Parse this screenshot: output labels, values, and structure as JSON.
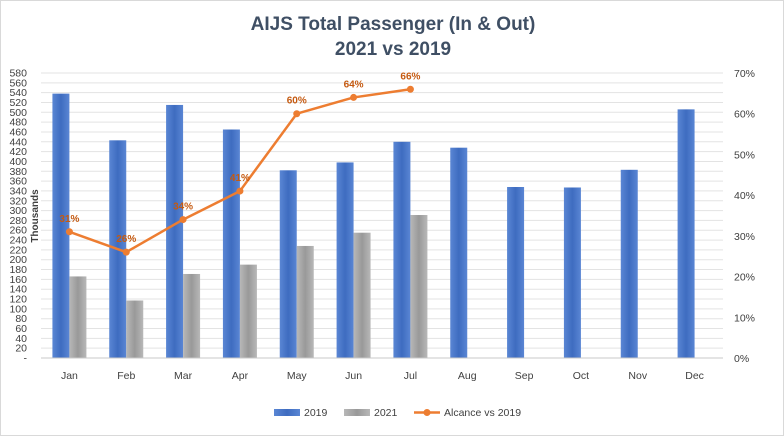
{
  "chart_data": {
    "type": "bar",
    "title_line1": "AIJS Total Passenger (In & Out)",
    "title_line2": "2021 vs 2019",
    "ylabel": "Thousands",
    "categories": [
      "Jan",
      "Feb",
      "Mar",
      "Apr",
      "May",
      "Jun",
      "Jul",
      "Aug",
      "Sep",
      "Oct",
      "Nov",
      "Dec"
    ],
    "ylim": [
      0,
      580
    ],
    "y_ticks": [
      "-",
      "20",
      "40",
      "60",
      "80",
      "100",
      "120",
      "140",
      "160",
      "180",
      "200",
      "220",
      "240",
      "260",
      "280",
      "300",
      "320",
      "340",
      "360",
      "380",
      "400",
      "420",
      "440",
      "460",
      "480",
      "500",
      "520",
      "540",
      "560",
      "580"
    ],
    "y2lim": [
      0,
      70
    ],
    "y2_ticks": [
      "0%",
      "10%",
      "20%",
      "30%",
      "40%",
      "50%",
      "60%",
      "70%"
    ],
    "grid": true,
    "legend_position": "bottom",
    "series": [
      {
        "name": "2019",
        "kind": "bar",
        "color": "#4472c4",
        "values": [
          538,
          443,
          515,
          465,
          382,
          398,
          440,
          428,
          348,
          347,
          383,
          506
        ]
      },
      {
        "name": "2021",
        "kind": "bar",
        "color": "#a5a5a5",
        "values": [
          166,
          117,
          171,
          190,
          228,
          255,
          291,
          null,
          null,
          null,
          null,
          null
        ]
      },
      {
        "name": "Alcance vs 2019",
        "kind": "line",
        "axis": "right",
        "color": "#ed7d31",
        "values": [
          31,
          26,
          34,
          41,
          60,
          64,
          66,
          null,
          null,
          null,
          null,
          null
        ],
        "labels": [
          "31%",
          "26%",
          "34%",
          "41%",
          "60%",
          "64%",
          "66%",
          "",
          "",
          "",
          "",
          ""
        ]
      }
    ]
  }
}
